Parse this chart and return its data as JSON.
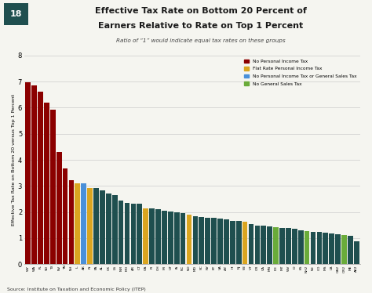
{
  "title_line1": "Effective Tax Rate on Bottom 20 Percent of",
  "title_line2": "Earners Relative to Rate on Top 1 Percent",
  "subtitle": "Ratio of “1” would indicate equal tax rates on these groups",
  "ylabel": "Effective Tax Rate on Bottom 20 versus Top 1 Percent",
  "source": "Source: Institute on Taxation and Economic Policy (ITEP)",
  "chart_number": "18",
  "bars": [
    {
      "state": "WY",
      "value": 6.97,
      "color": "#8B0000"
    },
    {
      "state": "WA",
      "value": 6.84,
      "color": "#8B0000"
    },
    {
      "state": "FL",
      "value": 6.62,
      "color": "#8B0000"
    },
    {
      "state": "SD",
      "value": 6.19,
      "color": "#8B0000"
    },
    {
      "state": "TX",
      "value": 5.93,
      "color": "#8B0000"
    },
    {
      "state": "NV",
      "value": 4.31,
      "color": "#8B0000"
    },
    {
      "state": "TN",
      "value": 3.67,
      "color": "#8B0000"
    },
    {
      "state": "NH",
      "value": 3.22,
      "color": "#8B0000"
    },
    {
      "state": "IL",
      "value": 3.1,
      "color": "#DAA520"
    },
    {
      "state": "AK",
      "value": 3.09,
      "color": "#4A90D9"
    },
    {
      "state": "IN",
      "value": 2.93,
      "color": "#DAA520"
    },
    {
      "state": "PA",
      "value": 2.92,
      "color": "#1F4F4F"
    },
    {
      "state": "AL",
      "value": 2.83,
      "color": "#1F4F4F"
    },
    {
      "state": "OK",
      "value": 2.7,
      "color": "#1F4F4F"
    },
    {
      "state": "LS",
      "value": 2.65,
      "color": "#1F4F4F"
    },
    {
      "state": "NM",
      "value": 2.44,
      "color": "#1F4F4F"
    },
    {
      "state": "MO",
      "value": 2.35,
      "color": "#1F4F4F"
    },
    {
      "state": "AR",
      "value": 2.33,
      "color": "#1F4F4F"
    },
    {
      "state": "CT",
      "value": 2.31,
      "color": "#1F4F4F"
    },
    {
      "state": "GA",
      "value": 2.13,
      "color": "#DAA520"
    },
    {
      "state": "RI",
      "value": 2.13,
      "color": "#1F4F4F"
    },
    {
      "state": "OH",
      "value": 2.11,
      "color": "#1F4F4F"
    },
    {
      "state": "MI",
      "value": 2.04,
      "color": "#1F4F4F"
    },
    {
      "state": "UT",
      "value": 2.02,
      "color": "#1F4F4F"
    },
    {
      "state": "IA",
      "value": 2.0,
      "color": "#1F4F4F"
    },
    {
      "state": "NC",
      "value": 1.97,
      "color": "#1F4F4F"
    },
    {
      "state": "ND",
      "value": 1.9,
      "color": "#DAA520"
    },
    {
      "state": "MD",
      "value": 1.84,
      "color": "#1F4F4F"
    },
    {
      "state": "SC",
      "value": 1.8,
      "color": "#1F4F4F"
    },
    {
      "state": "NY",
      "value": 1.78,
      "color": "#1F4F4F"
    },
    {
      "state": "KY",
      "value": 1.77,
      "color": "#1F4F4F"
    },
    {
      "state": "VA",
      "value": 1.74,
      "color": "#1F4F4F"
    },
    {
      "state": "AZ",
      "value": 1.73,
      "color": "#1F4F4F"
    },
    {
      "state": "HI",
      "value": 1.67,
      "color": "#1F4F4F"
    },
    {
      "state": "NJ",
      "value": 1.65,
      "color": "#1F4F4F"
    },
    {
      "state": "WI",
      "value": 1.63,
      "color": "#DAA520"
    },
    {
      "state": "VT",
      "value": 1.53,
      "color": "#1F4F4F"
    },
    {
      "state": "OR",
      "value": 1.49,
      "color": "#1F4F4F"
    },
    {
      "state": "CA",
      "value": 1.47,
      "color": "#1F4F4F"
    },
    {
      "state": "MN",
      "value": 1.44,
      "color": "#1F4F4F"
    },
    {
      "state": "DE",
      "value": 1.42,
      "color": "#6AAB3A"
    },
    {
      "state": "MT",
      "value": 1.4,
      "color": "#1F4F4F"
    },
    {
      "state": "WV",
      "value": 1.38,
      "color": "#1F4F4F"
    },
    {
      "state": "ID",
      "value": 1.35,
      "color": "#1F4F4F"
    },
    {
      "state": "KS",
      "value": 1.3,
      "color": "#1F4F4F"
    },
    {
      "state": "NH2",
      "value": 1.28,
      "color": "#6AAB3A"
    },
    {
      "state": "NE",
      "value": 1.25,
      "color": "#1F4F4F"
    },
    {
      "state": "CO",
      "value": 1.23,
      "color": "#1F4F4F"
    },
    {
      "state": "MS",
      "value": 1.21,
      "color": "#1F4F4F"
    },
    {
      "state": "LA",
      "value": 1.17,
      "color": "#1F4F4F"
    },
    {
      "state": "GA2",
      "value": 1.14,
      "color": "#1F4F4F"
    },
    {
      "state": "OR2",
      "value": 1.12,
      "color": "#6AAB3A"
    },
    {
      "state": "ME",
      "value": 1.1,
      "color": "#1F4F4F"
    },
    {
      "state": "AK2",
      "value": 0.88,
      "color": "#1F4F4F"
    }
  ],
  "legend": [
    {
      "label": "No Personal Income Tax",
      "color": "#8B0000"
    },
    {
      "label": "Flat Rate Personal Income Tax",
      "color": "#DAA520"
    },
    {
      "label": "No Personal Income Tax or General Sales Tax",
      "color": "#4A90D9"
    },
    {
      "label": "No General Sales Tax",
      "color": "#6AAB3A"
    }
  ],
  "ylim": [
    0,
    8
  ],
  "yticks": [
    0,
    1,
    2,
    3,
    4,
    5,
    6,
    7,
    8
  ],
  "background_color": "#F5F5F0",
  "grid_color": "#CCCCCC",
  "badge_color": "#1F4F4F"
}
